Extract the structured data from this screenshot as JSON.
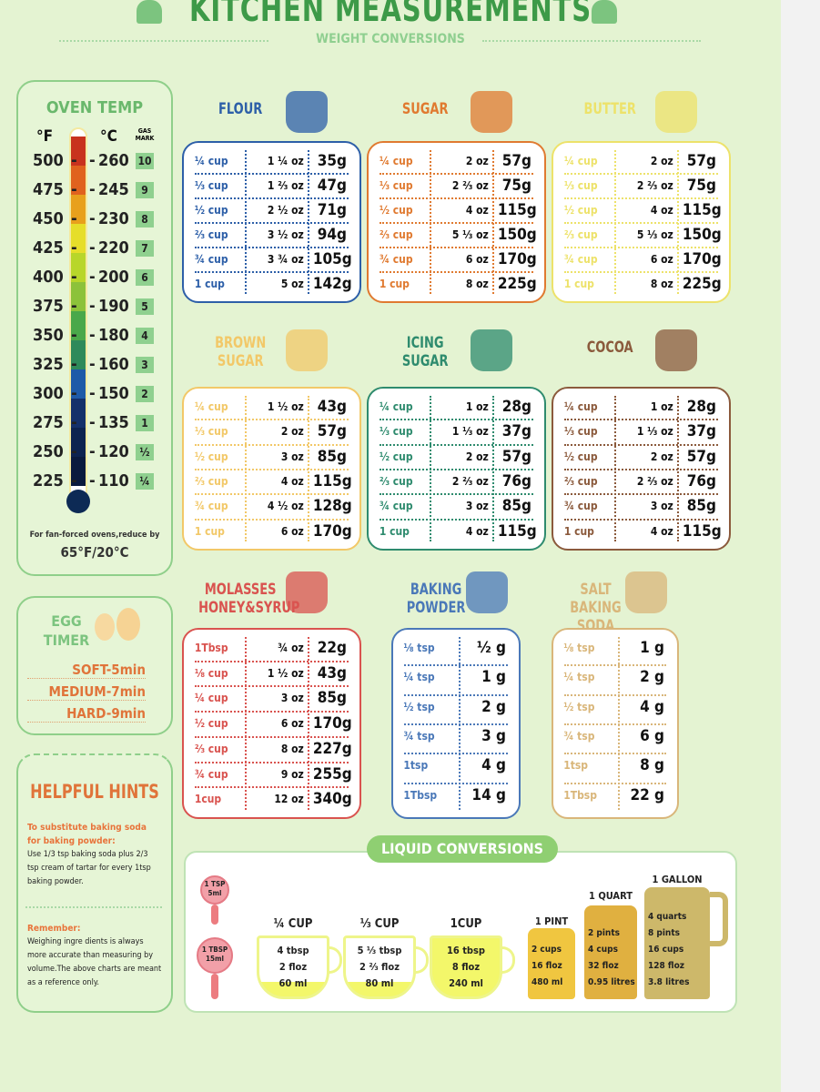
{
  "header": {
    "title": "KITCHEN MEASUREMENTS",
    "subtitle": "WEIGHT CONVERSIONS"
  },
  "oven": {
    "title": "OVEN TEMP",
    "f_label": "°F",
    "c_label": "°C",
    "gas_label": "GAS MARK",
    "rows": [
      [
        "500",
        "260",
        "10"
      ],
      [
        "475",
        "245",
        "9"
      ],
      [
        "450",
        "230",
        "8"
      ],
      [
        "425",
        "220",
        "7"
      ],
      [
        "400",
        "200",
        "6"
      ],
      [
        "375",
        "190",
        "5"
      ],
      [
        "350",
        "180",
        "4"
      ],
      [
        "325",
        "160",
        "3"
      ],
      [
        "300",
        "150",
        "2"
      ],
      [
        "275",
        "135",
        "1"
      ],
      [
        "250",
        "120",
        "½"
      ],
      [
        "225",
        "110",
        "¼"
      ]
    ],
    "colors": [
      "#c8321e",
      "#e0621e",
      "#e8a01c",
      "#e6de2a",
      "#b8d62a",
      "#8cc23a",
      "#4aa84a",
      "#2e8a5a",
      "#1e5aa8",
      "#14306a",
      "#0d2350",
      "#0a1a3e"
    ],
    "note": "For fan-forced ovens,reduce by",
    "note_value": "65°F/20°C"
  },
  "egg": {
    "title": "EGG TIMER",
    "items": [
      "SOFT-5min",
      "MEDIUM-7min",
      "HARD-9min"
    ]
  },
  "hints": {
    "title": "HELPFUL HINTS",
    "h1": "To substitute baking soda for baking powder:",
    "t1": "Use 1/3 tsp baking soda plus 2/3 tsp cream of tartar for every 1tsp baking powder.",
    "h2": "Remember:",
    "t2": "Weighing ingre dients is always more accurate than measuring by volume.The above charts are meant as a reference only."
  },
  "ingredients": [
    {
      "name": "FLOUR",
      "color": "#2d5fa8",
      "rows": [
        [
          "¼ cup",
          "1 ¼ oz",
          "35g"
        ],
        [
          "⅓ cup",
          "1 ⅔ oz",
          "47g"
        ],
        [
          "½ cup",
          "2 ½ oz",
          "71g"
        ],
        [
          "⅔ cup",
          "3 ½ oz",
          "94g"
        ],
        [
          "¾ cup",
          "3 ¾ oz",
          "105g"
        ],
        [
          "1 cup",
          "5 oz",
          "142g"
        ]
      ]
    },
    {
      "name": "SUGAR",
      "color": "#e07a30",
      "rows": [
        [
          "¼ cup",
          "2 oz",
          "57g"
        ],
        [
          "⅓ cup",
          "2 ⅔ oz",
          "75g"
        ],
        [
          "½ cup",
          "4 oz",
          "115g"
        ],
        [
          "⅔ cup",
          "5 ⅓ oz",
          "150g"
        ],
        [
          "¾ cup",
          "6 oz",
          "170g"
        ],
        [
          "1 cup",
          "8 oz",
          "225g"
        ]
      ]
    },
    {
      "name": "BUTTER",
      "color": "#ede26a",
      "rows": [
        [
          "¼ cup",
          "2 oz",
          "57g"
        ],
        [
          "⅓ cup",
          "2 ⅔ oz",
          "75g"
        ],
        [
          "½ cup",
          "4 oz",
          "115g"
        ],
        [
          "⅔ cup",
          "5 ⅓ oz",
          "150g"
        ],
        [
          "¾ cup",
          "6 oz",
          "170g"
        ],
        [
          "1 cup",
          "8 oz",
          "225g"
        ]
      ]
    },
    {
      "name": "BROWN SUGAR",
      "color": "#f2c868",
      "rows": [
        [
          "¼ cup",
          "1 ½ oz",
          "43g"
        ],
        [
          "⅓ cup",
          "2 oz",
          "57g"
        ],
        [
          "½ cup",
          "3 oz",
          "85g"
        ],
        [
          "⅔ cup",
          "4 oz",
          "115g"
        ],
        [
          "¾ cup",
          "4 ½ oz",
          "128g"
        ],
        [
          "1 cup",
          "6 oz",
          "170g"
        ]
      ]
    },
    {
      "name": "ICING SUGAR",
      "color": "#2e8b6e",
      "rows": [
        [
          "¼ cup",
          "1 oz",
          "28g"
        ],
        [
          "⅓ cup",
          "1 ⅓ oz",
          "37g"
        ],
        [
          "½ cup",
          "2 oz",
          "57g"
        ],
        [
          "⅔ cup",
          "2 ⅔ oz",
          "76g"
        ],
        [
          "¾ cup",
          "3 oz",
          "85g"
        ],
        [
          "1 cup",
          "4 oz",
          "115g"
        ]
      ]
    },
    {
      "name": "COCOA",
      "color": "#8b5a3c",
      "rows": [
        [
          "¼ cup",
          "1 oz",
          "28g"
        ],
        [
          "⅓ cup",
          "1 ⅓ oz",
          "37g"
        ],
        [
          "½ cup",
          "2 oz",
          "57g"
        ],
        [
          "⅔ cup",
          "2 ⅔ oz",
          "76g"
        ],
        [
          "¾ cup",
          "3 oz",
          "85g"
        ],
        [
          "1 cup",
          "4 oz",
          "115g"
        ]
      ]
    },
    {
      "name": "MOLASSES HONEY&SYRUP",
      "color": "#d9534f",
      "rows": [
        [
          "1Tbsp",
          "¾ oz",
          "22g"
        ],
        [
          "⅛ cup",
          "1 ½ oz",
          "43g"
        ],
        [
          "¼ cup",
          "3 oz",
          "85g"
        ],
        [
          "½ cup",
          "6 oz",
          "170g"
        ],
        [
          "⅔ cup",
          "8 oz",
          "227g"
        ],
        [
          "¾ cup",
          "9 oz",
          "255g"
        ],
        [
          "1cup",
          "12 oz",
          "340g"
        ]
      ]
    },
    {
      "name": "BAKING POWDER",
      "color": "#4a78b8",
      "rows": [
        [
          "⅛ tsp",
          "½ g"
        ],
        [
          "¼ tsp",
          "1 g"
        ],
        [
          "½ tsp",
          "2 g"
        ],
        [
          "¾ tsp",
          "3 g"
        ],
        [
          "1tsp",
          "4 g"
        ],
        [
          "1Tbsp",
          "14 g"
        ]
      ]
    },
    {
      "name": "SALT BAKING SODA",
      "color": "#d9b67a",
      "rows": [
        [
          "⅛ tsp",
          "1 g"
        ],
        [
          "¼ tsp",
          "2 g"
        ],
        [
          "½ tsp",
          "4 g"
        ],
        [
          "¾ tsp",
          "6 g"
        ],
        [
          "1tsp",
          "8 g"
        ],
        [
          "1Tbsp",
          "22 g"
        ]
      ]
    }
  ],
  "liquid": {
    "title": "LIQUID CONVERSIONS",
    "spoons": [
      [
        "1 TSP",
        "5ml"
      ],
      [
        "1 TBSP",
        "15ml"
      ]
    ],
    "cups": [
      {
        "label": "¼ CUP",
        "lines": [
          "4 tbsp",
          "2 floz",
          "60 ml"
        ]
      },
      {
        "label": "⅓ CUP",
        "lines": [
          "5 ⅓ tbsp",
          "2 ⅔ floz",
          "80 ml"
        ]
      },
      {
        "label": "1CUP",
        "lines": [
          "16 tbsp",
          "8 floz",
          "240 ml"
        ]
      }
    ],
    "containers": [
      {
        "label": "1 PINT",
        "lines": [
          "2 cups",
          "16 floz",
          "480 ml"
        ],
        "color": "#f0c640"
      },
      {
        "label": "1 QUART",
        "lines": [
          "2 pints",
          "4 cups",
          "32 floz",
          "0.95 litres"
        ],
        "color": "#e0b040"
      },
      {
        "label": "1 GALLON",
        "lines": [
          "4 quarts",
          "8 pints",
          "16 cups",
          "128 floz",
          "3.8 litres"
        ],
        "color": "#cdb86a"
      }
    ]
  }
}
